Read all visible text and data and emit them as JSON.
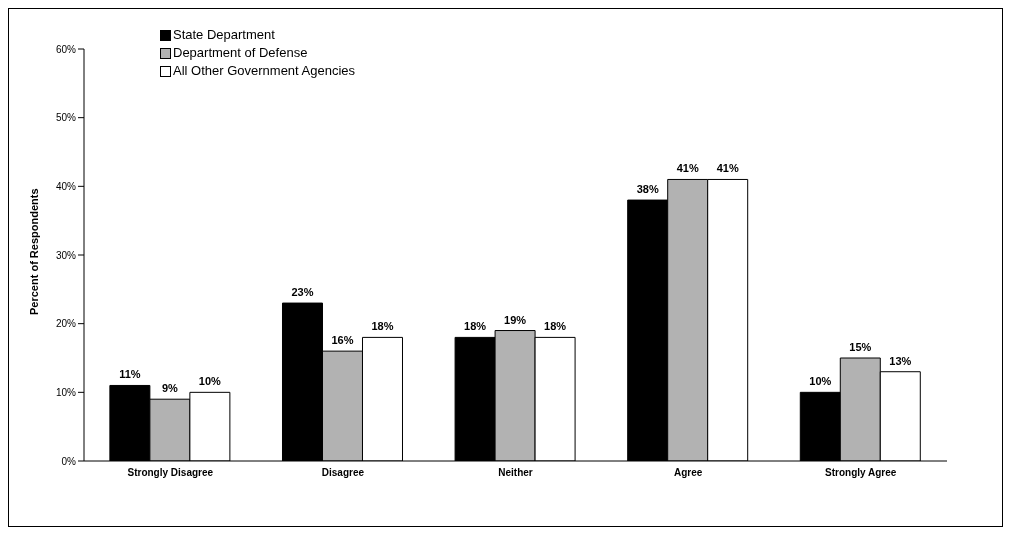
{
  "chart_data": {
    "type": "bar",
    "ylabel": "Percent of Respondents",
    "categories": [
      "Strongly Disagree",
      "Disagree",
      "Neither",
      "Agree",
      "Strongly Agree"
    ],
    "series": [
      {
        "name": "State Department",
        "color": "#000000",
        "values": [
          11,
          23,
          18,
          38,
          10
        ],
        "value_labels": [
          "11%",
          "23%",
          "18%",
          "38%",
          "10%"
        ]
      },
      {
        "name": "Department of Defense",
        "color": "#b2b2b2",
        "values": [
          9,
          16,
          19,
          41,
          15
        ],
        "value_labels": [
          "9%",
          "16%",
          "19%",
          "41%",
          "15%"
        ]
      },
      {
        "name": "All Other Government Agencies",
        "color": "#ffffff",
        "values": [
          10,
          18,
          18,
          41,
          13
        ],
        "value_labels": [
          "10%",
          "18%",
          "18%",
          "41%",
          "13%"
        ]
      }
    ],
    "ylim": [
      0,
      60
    ],
    "yticks": [
      {
        "value": 0,
        "label": "0%"
      },
      {
        "value": 10,
        "label": "10%"
      },
      {
        "value": 20,
        "label": "20%"
      },
      {
        "value": 30,
        "label": "30%"
      },
      {
        "value": 40,
        "label": "40%"
      },
      {
        "value": 50,
        "label": "50%"
      },
      {
        "value": 60,
        "label": "60%"
      }
    ],
    "grid": false,
    "legend": "top left"
  }
}
